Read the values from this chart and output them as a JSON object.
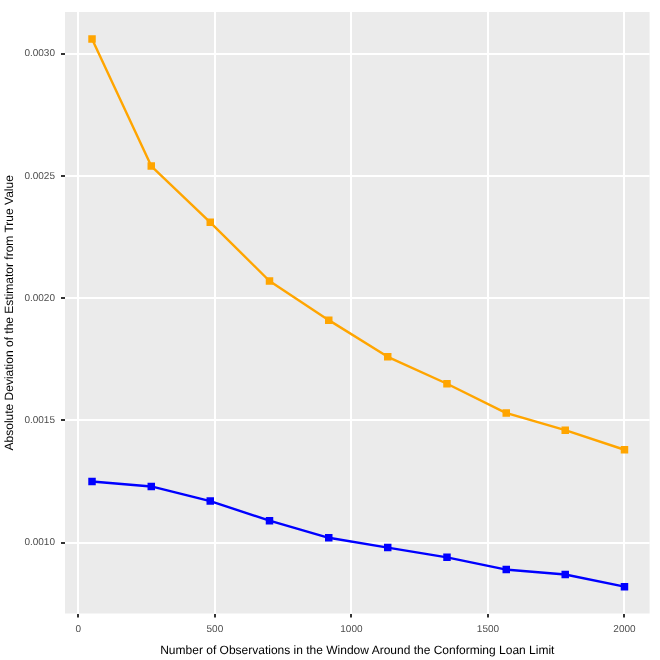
{
  "chart_data": {
    "type": "line",
    "xlabel": "Number of Observations in the Window Around the Conforming Loan Limit",
    "ylabel": "Absolute Deviation of the Estimator from True Value",
    "x": [
      50,
      267,
      483,
      700,
      917,
      1133,
      1350,
      1567,
      1783,
      2000
    ],
    "series": [
      {
        "color": "#ffa500",
        "values": [
          0.00306,
          0.00254,
          0.00231,
          0.00207,
          0.00191,
          0.00176,
          0.00165,
          0.00153,
          0.00146,
          0.00138
        ]
      },
      {
        "color": "#0000ff",
        "values": [
          0.00125,
          0.00123,
          0.00117,
          0.00109,
          0.00102,
          0.00098,
          0.00094,
          0.00089,
          0.00087,
          0.00082
        ]
      }
    ],
    "xlim": [
      -49,
      2092
    ],
    "xticks": [
      0,
      500,
      1000,
      1500,
      2000
    ],
    "ylim": [
      0.00071,
      0.00317
    ],
    "yticks": [
      {
        "value": 0.001,
        "label": "0.0010"
      },
      {
        "value": 0.0015,
        "label": "0.0015"
      },
      {
        "value": 0.002,
        "label": "0.0020"
      },
      {
        "value": 0.0025,
        "label": "0.0025"
      },
      {
        "value": 0.003,
        "label": "0.0030"
      }
    ],
    "grid": true,
    "marker": "square",
    "line_style": "solid"
  }
}
